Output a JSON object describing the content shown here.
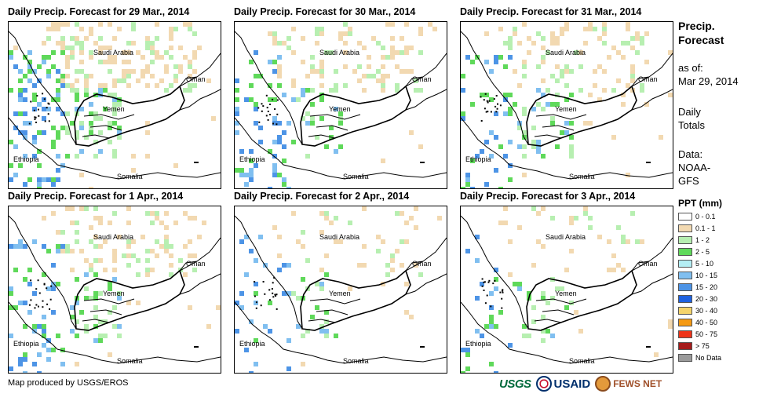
{
  "panels": [
    {
      "title": "Daily Precip. Forecast for 29 Mar., 2014",
      "seed": 29,
      "intensity": 3
    },
    {
      "title": "Daily Precip. Forecast for 30 Mar., 2014",
      "seed": 30,
      "intensity": 2
    },
    {
      "title": "Daily Precip. Forecast for 31 Mar., 2014",
      "seed": 31,
      "intensity": 2
    },
    {
      "title": "Daily Precip. Forecast for 1 Apr., 2014",
      "seed": 1,
      "intensity": 2
    },
    {
      "title": "Daily Precip. Forecast for 2 Apr., 2014",
      "seed": 2,
      "intensity": 1
    },
    {
      "title": "Daily Precip. Forecast for 3 Apr., 2014",
      "seed": 3,
      "intensity": 1
    }
  ],
  "country_labels": {
    "saudi_arabia": "Saudi Arabia",
    "oman": "Oman",
    "yemen": "Yemen",
    "ethiopia": "Ethiopia",
    "somalia": "Somalia"
  },
  "side": {
    "title_line1": "Precip.",
    "title_line2": "Forecast",
    "asof_label": "as of:",
    "asof_date": "Mar 29, 2014",
    "daily_line1": "Daily",
    "daily_line2": "Totals",
    "data_label": "Data:",
    "data_line1": "NOAA-",
    "data_line2": "GFS"
  },
  "legend": {
    "title": "PPT (mm)",
    "items": [
      {
        "label": "0 - 0.1",
        "color": "#ffffff"
      },
      {
        "label": "0.1 - 1",
        "color": "#f2d9b1"
      },
      {
        "label": "1 - 2",
        "color": "#b7efb1"
      },
      {
        "label": "2 - 5",
        "color": "#5fd95a"
      },
      {
        "label": "5 - 10",
        "color": "#b4eef4"
      },
      {
        "label": "10 - 15",
        "color": "#80bff0"
      },
      {
        "label": "15 - 20",
        "color": "#4d94e6"
      },
      {
        "label": "20 - 30",
        "color": "#1f62e0"
      },
      {
        "label": "30 - 40",
        "color": "#f5d46b"
      },
      {
        "label": "40 - 50",
        "color": "#f59a14"
      },
      {
        "label": "50 - 75",
        "color": "#ef3419"
      },
      {
        "label": "> 75",
        "color": "#a51c1c"
      },
      {
        "label": "No Data",
        "color": "#9a9a9a"
      }
    ]
  },
  "credit": "Map produced by USGS/EROS",
  "logos": {
    "usgs": "USGS",
    "usaid": "USAID",
    "fews": "FEWS NET"
  }
}
